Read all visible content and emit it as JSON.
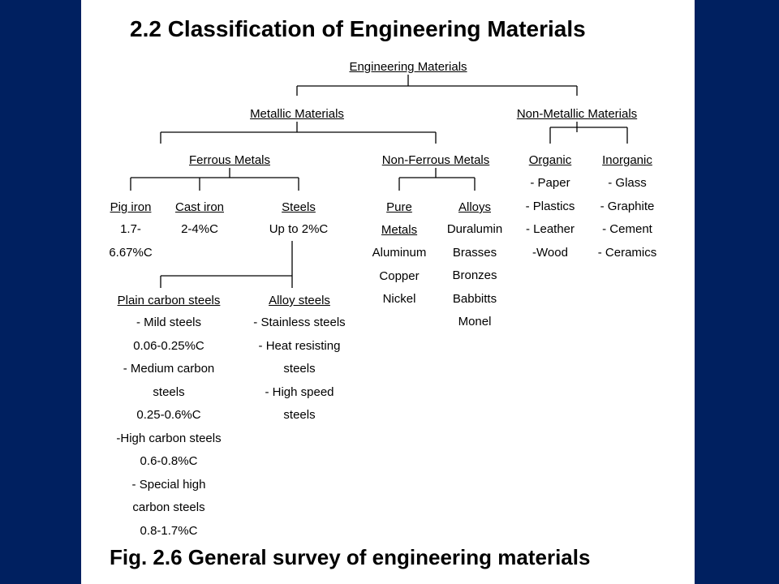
{
  "title": "2.2  Classification of Engineering Materials",
  "caption": "Fig. 2.6 General survey of engineering materials",
  "colors": {
    "background": "#002060",
    "slide": "#ffffff",
    "text": "#000000"
  },
  "nodes": {
    "root": "Engineering Materials",
    "metallic": "Metallic Materials",
    "non_metallic": "Non-Metallic Materials",
    "ferrous": "Ferrous Metals",
    "non_ferrous": "Non-Ferrous Metals",
    "organic": "Organic",
    "inorganic": "Inorganic",
    "pig_iron": "Pig iron",
    "cast_iron": "Cast iron",
    "steels": "Steels",
    "pure": "Pure",
    "alloys": "Alloys",
    "plain_carbon": "Plain carbon steels",
    "alloy_steels": "Alloy steels"
  },
  "lists": {
    "pig_iron": [
      "1.7-",
      "6.67%C"
    ],
    "cast_iron": [
      "2-4%C"
    ],
    "steels": [
      "Up to 2%C"
    ],
    "pure_metals_label": "Metals",
    "pure": [
      "Aluminum",
      "Copper",
      "Nickel"
    ],
    "alloys": [
      "Duralumin",
      "Brasses",
      "Bronzes",
      "Babbitts",
      "Monel"
    ],
    "organic": [
      "- Paper",
      "- Plastics",
      "- Leather",
      "-Wood"
    ],
    "inorganic": [
      "- Glass",
      "- Graphite",
      "- Cement",
      "- Ceramics"
    ],
    "plain_carbon": [
      "- Mild steels",
      "0.06-0.25%C",
      "- Medium carbon",
      "steels",
      "0.25-0.6%C",
      "-High carbon steels",
      "0.6-0.8%C",
      "- Special high",
      "carbon steels",
      "0.8-1.7%C"
    ],
    "alloy_steels": [
      "- Stainless steels",
      "- Heat resisting",
      "steels",
      "- High speed",
      "steels"
    ]
  }
}
